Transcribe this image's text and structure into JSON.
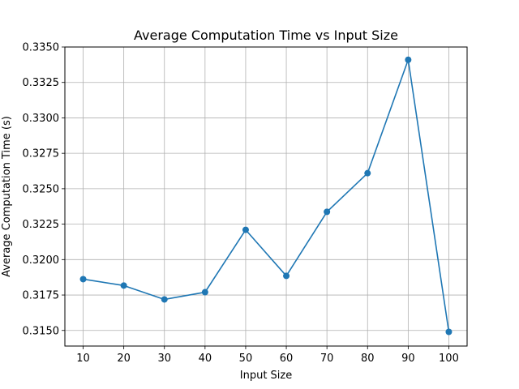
{
  "chart_data": {
    "type": "line",
    "title": "Average Computation Time vs Input Size",
    "xlabel": "Input Size",
    "ylabel": "Average Computation Time (s)",
    "x": [
      10,
      20,
      30,
      40,
      50,
      60,
      70,
      80,
      90,
      100
    ],
    "series": [
      {
        "values": [
          0.31862,
          0.31817,
          0.31719,
          0.3177,
          0.3221,
          0.31885,
          0.32337,
          0.3261,
          0.3341,
          0.3149
        ],
        "color": "#1f77b4",
        "marker": "circle"
      }
    ],
    "xticks": [
      "10",
      "20",
      "30",
      "40",
      "50",
      "60",
      "70",
      "80",
      "90",
      "100"
    ],
    "yticks": [
      "0.3150",
      "0.3175",
      "0.3200",
      "0.3225",
      "0.3250",
      "0.3275",
      "0.3300",
      "0.3325",
      "0.3350"
    ],
    "xlim": [
      5.5,
      104.5
    ],
    "ylim": [
      0.3139,
      0.335
    ],
    "grid": true,
    "legend": "none"
  }
}
